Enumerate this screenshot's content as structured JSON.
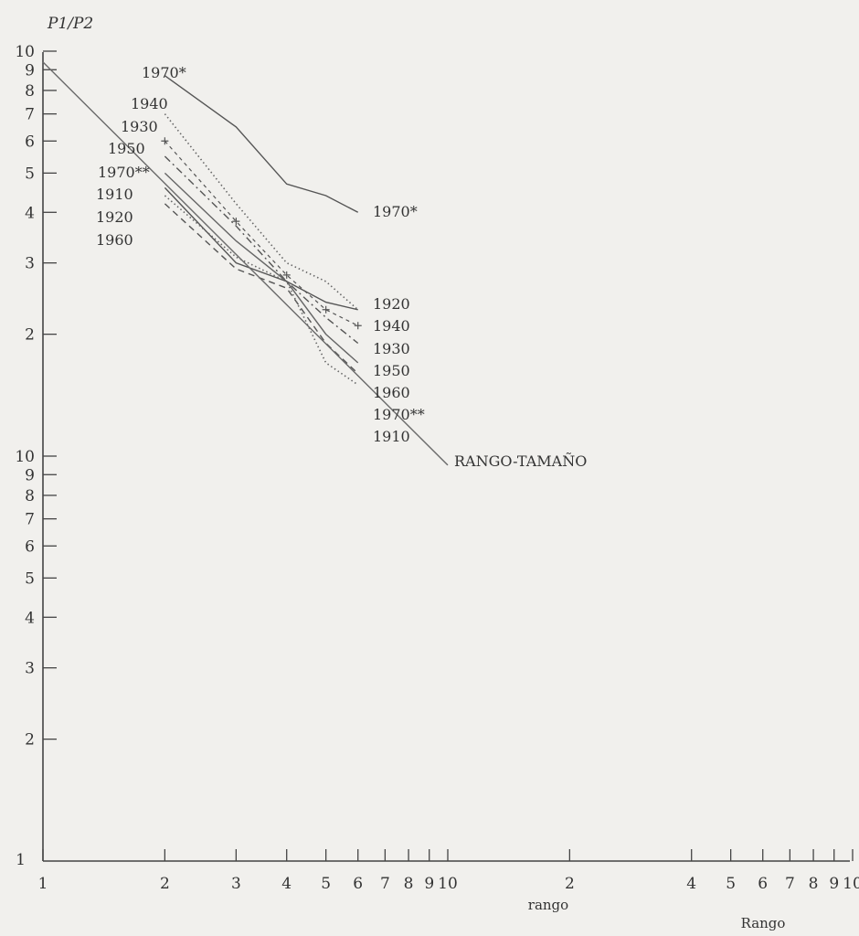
{
  "chart_data": {
    "type": "line",
    "scale": "log-log",
    "ylabel": "P1/P2",
    "xlabel": "rango",
    "xlabel2": "Rango",
    "xlim": [
      1,
      100
    ],
    "ylim": [
      1,
      100
    ],
    "x_ticks_decade1": [
      "1",
      "2",
      "3",
      "4",
      "5",
      "6",
      "7",
      "8",
      "9",
      "10"
    ],
    "x_ticks_decade2": [
      "2",
      "4",
      "5",
      "6",
      "7",
      "8",
      "9",
      "10"
    ],
    "y_ticks_decade1": [
      "2",
      "3",
      "4",
      "5",
      "6",
      "7",
      "8",
      "9",
      "10"
    ],
    "y_ticks_decade2": [
      "2",
      "3",
      "4",
      "5",
      "6",
      "7",
      "8",
      "9",
      "10"
    ],
    "y_tick_origin": "1",
    "series": [
      {
        "name": "1970*",
        "style": "solid",
        "color": "#555555",
        "x": [
          2,
          3,
          4,
          5,
          6
        ],
        "y": [
          87,
          65,
          47,
          44,
          40
        ]
      },
      {
        "name": "1940",
        "style": "dotted",
        "color": "#666666",
        "x": [
          2,
          3,
          4,
          5,
          6
        ],
        "y": [
          70,
          42,
          30,
          27,
          23
        ]
      },
      {
        "name": "1930",
        "style": "cross",
        "color": "#555555",
        "x": [
          2,
          3,
          4,
          5,
          6
        ],
        "y": [
          60,
          38,
          28,
          23,
          21
        ]
      },
      {
        "name": "1950",
        "style": "dashdot",
        "color": "#555555",
        "x": [
          2,
          3,
          4,
          5,
          6
        ],
        "y": [
          55,
          37,
          27,
          22,
          19
        ]
      },
      {
        "name": "1970**",
        "style": "solid",
        "color": "#666666",
        "x": [
          2,
          3,
          4,
          5,
          6
        ],
        "y": [
          50,
          34,
          27,
          20,
          17
        ]
      },
      {
        "name": "1910",
        "style": "solid",
        "color": "#555555",
        "x": [
          2,
          3,
          4,
          5,
          6
        ],
        "y": [
          46,
          30,
          27,
          24,
          23
        ]
      },
      {
        "name": "1920",
        "style": "dashed",
        "color": "#555555",
        "x": [
          2,
          3,
          4,
          5,
          6
        ],
        "y": [
          42,
          29,
          26,
          19,
          16
        ]
      },
      {
        "name": "1960",
        "style": "dotted",
        "color": "#666666",
        "x": [
          2,
          3,
          4,
          5,
          6
        ],
        "y": [
          44,
          31,
          27,
          17,
          15
        ]
      },
      {
        "name": "RANGO-TAMAÑO",
        "style": "solid",
        "color": "#6a6a6a",
        "x": [
          1,
          10
        ],
        "y": [
          94,
          9.5
        ]
      }
    ],
    "left_labels": [
      "1970*",
      "1940",
      "1930",
      "1950",
      "1970**",
      "1910",
      "1920",
      "1960"
    ],
    "right_labels": [
      "1970*",
      "1920",
      "1940",
      "1930",
      "1950",
      "1960",
      "1970**",
      "1910",
      "RANGO-TAMAÑO"
    ]
  }
}
